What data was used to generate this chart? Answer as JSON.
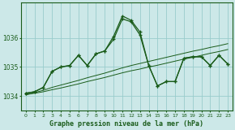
{
  "title": "Graphe pression niveau de la mer (hPa)",
  "bg_color": "#cce8e8",
  "grid_color": "#99cccc",
  "line_color": "#1a5c1a",
  "x_ticks": [
    0,
    1,
    2,
    3,
    4,
    5,
    6,
    7,
    8,
    9,
    10,
    11,
    12,
    13,
    14,
    15,
    16,
    17,
    18,
    19,
    20,
    21,
    22,
    23
  ],
  "ylim": [
    1033.5,
    1037.2
  ],
  "yticks": [
    1034,
    1035,
    1036
  ],
  "series_trend1": [
    1034.05,
    1034.1,
    1034.15,
    1034.22,
    1034.28,
    1034.35,
    1034.42,
    1034.5,
    1034.57,
    1034.64,
    1034.72,
    1034.8,
    1034.87,
    1034.93,
    1035.0,
    1035.06,
    1035.13,
    1035.2,
    1035.27,
    1035.33,
    1035.4,
    1035.47,
    1035.53,
    1035.6
  ],
  "series_trend2": [
    1034.05,
    1034.12,
    1034.2,
    1034.3,
    1034.38,
    1034.46,
    1034.54,
    1034.63,
    1034.71,
    1034.79,
    1034.88,
    1034.97,
    1035.05,
    1035.12,
    1035.19,
    1035.26,
    1035.33,
    1035.4,
    1035.47,
    1035.54,
    1035.6,
    1035.67,
    1035.73,
    1035.8
  ],
  "series_main1": [
    1034.1,
    1034.15,
    1034.3,
    1034.85,
    1035.0,
    1035.05,
    1035.4,
    1035.05,
    1035.45,
    1035.55,
    1036.05,
    1036.75,
    1036.6,
    1036.2,
    1035.05,
    1034.35,
    1034.5,
    1034.5,
    1035.3,
    1035.35,
    1035.35,
    1035.05,
    1035.4,
    1035.1
  ],
  "series_main2": [
    1034.1,
    1034.15,
    1034.3,
    1034.85,
    1035.0,
    1035.05,
    1035.4,
    1035.05,
    1035.45,
    1035.55,
    1035.95,
    1036.65,
    1036.55,
    1036.1,
    1035.05,
    1034.35,
    1034.5,
    1034.5,
    1035.3,
    1035.35,
    1035.35,
    1035.05,
    1035.4,
    1035.1
  ]
}
